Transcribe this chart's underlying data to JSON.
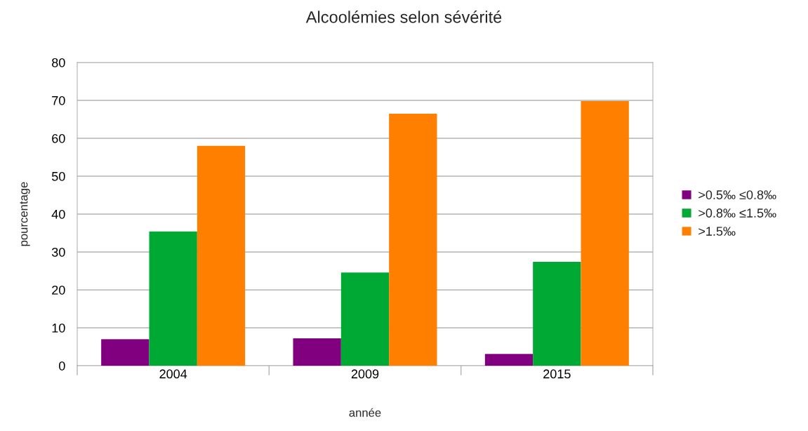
{
  "chart_data": {
    "type": "bar",
    "title": "Alcoolémies selon sévérité",
    "xlabel": "année",
    "ylabel": "pourcentage",
    "categories": [
      "2004",
      "2009",
      "2015"
    ],
    "series": [
      {
        "name": ">0.5‰ ≤0.8‰",
        "color": "#800080",
        "values": [
          7.0,
          7.2,
          3.1
        ]
      },
      {
        "name": ">0.8‰ ≤1.5‰",
        "color": "#00a933",
        "values": [
          35.4,
          24.6,
          27.4
        ]
      },
      {
        "name": ">1.5‰",
        "color": "#ff8000",
        "values": [
          58.0,
          66.5,
          69.8
        ]
      }
    ],
    "ylim": [
      0,
      80
    ],
    "yticks": [
      0,
      10,
      20,
      30,
      40,
      50,
      60,
      70,
      80
    ],
    "grid": "y",
    "legend": "right"
  }
}
